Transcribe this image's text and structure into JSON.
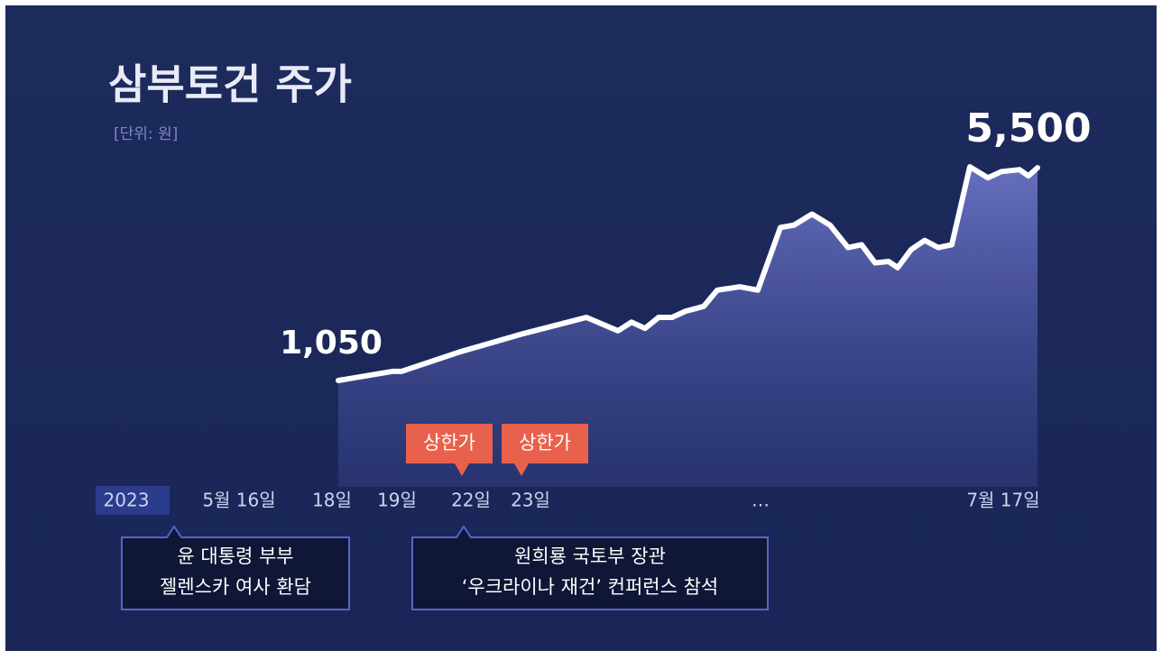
{
  "chart_data": {
    "type": "line",
    "title": "삼부토건 주가",
    "subtitle": "[단위: 원]",
    "values": [
      1050,
      1240,
      1240,
      1650,
      2030,
      2370,
      2090,
      2270,
      2140,
      2370,
      2370,
      2500,
      2600,
      2940,
      3010,
      2940,
      4250,
      4300,
      4530,
      4300,
      3830,
      3890,
      3510,
      3540,
      3410,
      3790,
      3980,
      3830,
      3890,
      5520,
      5290,
      5420,
      5460,
      5330,
      5500
    ],
    "value_labels": [
      "1,050",
      null,
      null,
      null,
      null,
      null,
      null,
      null,
      null,
      null,
      null,
      null,
      null,
      null,
      null,
      null,
      null,
      null,
      null,
      null,
      null,
      null,
      null,
      null,
      null,
      null,
      null,
      null,
      null,
      null,
      null,
      null,
      null,
      null,
      "5,500"
    ],
    "color": "#ffffff",
    "timeline_labels": [
      "2023",
      "5월 16일",
      "18일",
      "19일",
      "22일",
      "23일",
      "…",
      "7월 17일"
    ],
    "callouts": [
      "상한가",
      "상한가"
    ],
    "events": [
      [
        "윤 대통령 부부",
        "젤렌스카 여사 환담"
      ],
      [
        "원희룡 국토부 장관",
        "‘우크라이나 재건’ 컨퍼런스 참석"
      ]
    ]
  }
}
